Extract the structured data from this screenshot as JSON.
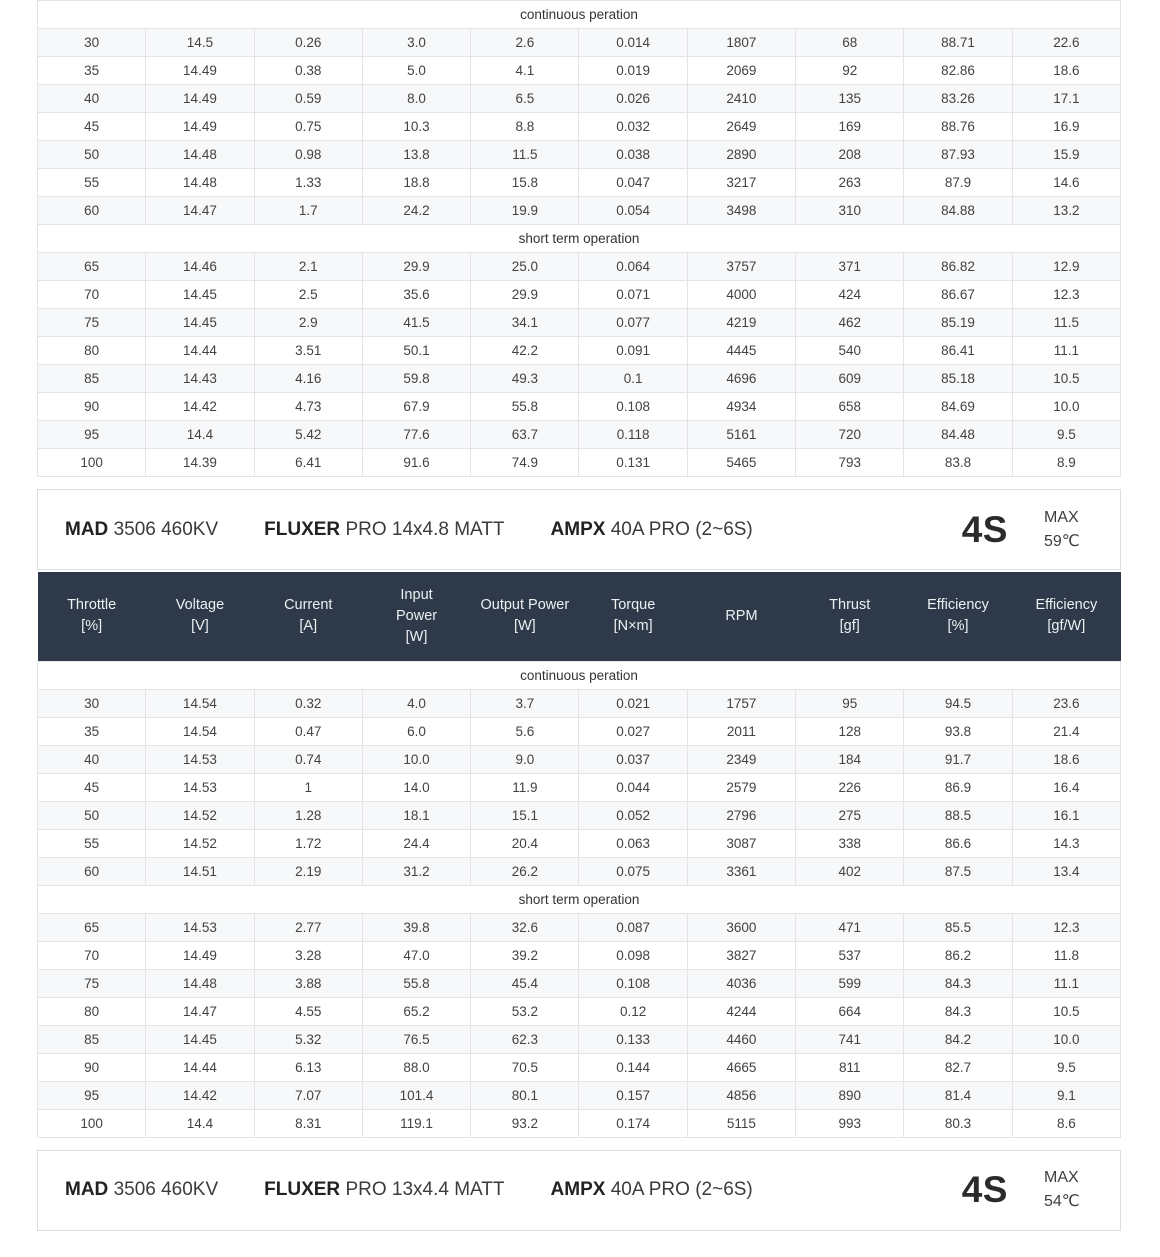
{
  "colors": {
    "header_bg": "#2e3a49",
    "header_text": "#edf0f3",
    "stripe": "#f7f8f9",
    "border": "#e4e4e6",
    "cell_text": "#424242"
  },
  "header_columns": [
    [
      "Throttle",
      "[%]"
    ],
    [
      "Voltage",
      "[V]"
    ],
    [
      "Current",
      "[A]"
    ],
    [
      "Input",
      "Power",
      "[W]"
    ],
    [
      "Output Power",
      "[W]"
    ],
    [
      "Torque",
      "[N×m]"
    ],
    [
      "RPM"
    ],
    [
      "Thrust",
      "[gf]"
    ],
    [
      "Efficiency",
      "[%]"
    ],
    [
      "Efficiency",
      "[gf/W]"
    ]
  ],
  "tables": [
    {
      "name": "performance-table-top",
      "sections": [
        {
          "label": "continuous peration",
          "rows": [
            [
              "30",
              "14.5",
              "0.26",
              "3.0",
              "2.6",
              "0.014",
              "1807",
              "68",
              "88.71",
              "22.6"
            ],
            [
              "35",
              "14.49",
              "0.38",
              "5.0",
              "4.1",
              "0.019",
              "2069",
              "92",
              "82.86",
              "18.6"
            ],
            [
              "40",
              "14.49",
              "0.59",
              "8.0",
              "6.5",
              "0.026",
              "2410",
              "135",
              "83.26",
              "17.1"
            ],
            [
              "45",
              "14.49",
              "0.75",
              "10.3",
              "8.8",
              "0.032",
              "2649",
              "169",
              "88.76",
              "16.9"
            ],
            [
              "50",
              "14.48",
              "0.98",
              "13.8",
              "11.5",
              "0.038",
              "2890",
              "208",
              "87.93",
              "15.9"
            ],
            [
              "55",
              "14.48",
              "1.33",
              "18.8",
              "15.8",
              "0.047",
              "3217",
              "263",
              "87.9",
              "14.6"
            ],
            [
              "60",
              "14.47",
              "1.7",
              "24.2",
              "19.9",
              "0.054",
              "3498",
              "310",
              "84.88",
              "13.2"
            ]
          ]
        },
        {
          "label": "short term operation",
          "rows": [
            [
              "65",
              "14.46",
              "2.1",
              "29.9",
              "25.0",
              "0.064",
              "3757",
              "371",
              "86.82",
              "12.9"
            ],
            [
              "70",
              "14.45",
              "2.5",
              "35.6",
              "29.9",
              "0.071",
              "4000",
              "424",
              "86.67",
              "12.3"
            ],
            [
              "75",
              "14.45",
              "2.9",
              "41.5",
              "34.1",
              "0.077",
              "4219",
              "462",
              "85.19",
              "11.5"
            ],
            [
              "80",
              "14.44",
              "3.51",
              "50.1",
              "42.2",
              "0.091",
              "4445",
              "540",
              "86.41",
              "11.1"
            ],
            [
              "85",
              "14.43",
              "4.16",
              "59.8",
              "49.3",
              "0.1",
              "4696",
              "609",
              "85.18",
              "10.5"
            ],
            [
              "90",
              "14.42",
              "4.73",
              "67.9",
              "55.8",
              "0.108",
              "4934",
              "658",
              "84.69",
              "10.0"
            ],
            [
              "95",
              "14.4",
              "5.42",
              "77.6",
              "63.7",
              "0.118",
              "5161",
              "720",
              "84.48",
              "9.5"
            ],
            [
              "100",
              "14.39",
              "6.41",
              "91.6",
              "74.9",
              "0.131",
              "5465",
              "793",
              "83.8",
              "8.9"
            ]
          ]
        }
      ]
    },
    {
      "name": "performance-table-bottom",
      "sections": [
        {
          "label": "continuous peration",
          "rows": [
            [
              "30",
              "14.54",
              "0.32",
              "4.0",
              "3.7",
              "0.021",
              "1757",
              "95",
              "94.5",
              "23.6"
            ],
            [
              "35",
              "14.54",
              "0.47",
              "6.0",
              "5.6",
              "0.027",
              "2011",
              "128",
              "93.8",
              "21.4"
            ],
            [
              "40",
              "14.53",
              "0.74",
              "10.0",
              "9.0",
              "0.037",
              "2349",
              "184",
              "91.7",
              "18.6"
            ],
            [
              "45",
              "14.53",
              "1",
              "14.0",
              "11.9",
              "0.044",
              "2579",
              "226",
              "86.9",
              "16.4"
            ],
            [
              "50",
              "14.52",
              "1.28",
              "18.1",
              "15.1",
              "0.052",
              "2796",
              "275",
              "88.5",
              "16.1"
            ],
            [
              "55",
              "14.52",
              "1.72",
              "24.4",
              "20.4",
              "0.063",
              "3087",
              "338",
              "86.6",
              "14.3"
            ],
            [
              "60",
              "14.51",
              "2.19",
              "31.2",
              "26.2",
              "0.075",
              "3361",
              "402",
              "87.5",
              "13.4"
            ]
          ]
        },
        {
          "label": "short term operation",
          "rows": [
            [
              "65",
              "14.53",
              "2.77",
              "39.8",
              "32.6",
              "0.087",
              "3600",
              "471",
              "85.5",
              "12.3"
            ],
            [
              "70",
              "14.49",
              "3.28",
              "47.0",
              "39.2",
              "0.098",
              "3827",
              "537",
              "86.2",
              "11.8"
            ],
            [
              "75",
              "14.48",
              "3.88",
              "55.8",
              "45.4",
              "0.108",
              "4036",
              "599",
              "84.3",
              "11.1"
            ],
            [
              "80",
              "14.47",
              "4.55",
              "65.2",
              "53.2",
              "0.12",
              "4244",
              "664",
              "84.3",
              "10.5"
            ],
            [
              "85",
              "14.45",
              "5.32",
              "76.5",
              "62.3",
              "0.133",
              "4460",
              "741",
              "84.2",
              "10.0"
            ],
            [
              "90",
              "14.44",
              "6.13",
              "88.0",
              "70.5",
              "0.144",
              "4665",
              "811",
              "82.7",
              "9.5"
            ],
            [
              "95",
              "14.42",
              "7.07",
              "101.4",
              "80.1",
              "0.157",
              "4856",
              "890",
              "81.4",
              "9.1"
            ],
            [
              "100",
              "14.4",
              "8.31",
              "119.1",
              "93.2",
              "0.174",
              "5115",
              "993",
              "80.3",
              "8.6"
            ]
          ]
        }
      ]
    }
  ],
  "title_bars": [
    {
      "segments": [
        {
          "brand": "MAD",
          "text": "3506 460KV"
        },
        {
          "brand": "FLUXER",
          "text": "PRO 14x4.8 MATT"
        },
        {
          "brand": "AMPX",
          "text": "40A PRO (2~6S)"
        }
      ],
      "battery": "4S",
      "max_label": "MAX",
      "max_temp": "59℃"
    },
    {
      "segments": [
        {
          "brand": "MAD",
          "text": "3506 460KV"
        },
        {
          "brand": "FLUXER",
          "text": "PRO 13x4.4 MATT"
        },
        {
          "brand": "AMPX",
          "text": "40A PRO (2~6S)"
        }
      ],
      "battery": "4S",
      "max_label": "MAX",
      "max_temp": "54℃"
    }
  ]
}
